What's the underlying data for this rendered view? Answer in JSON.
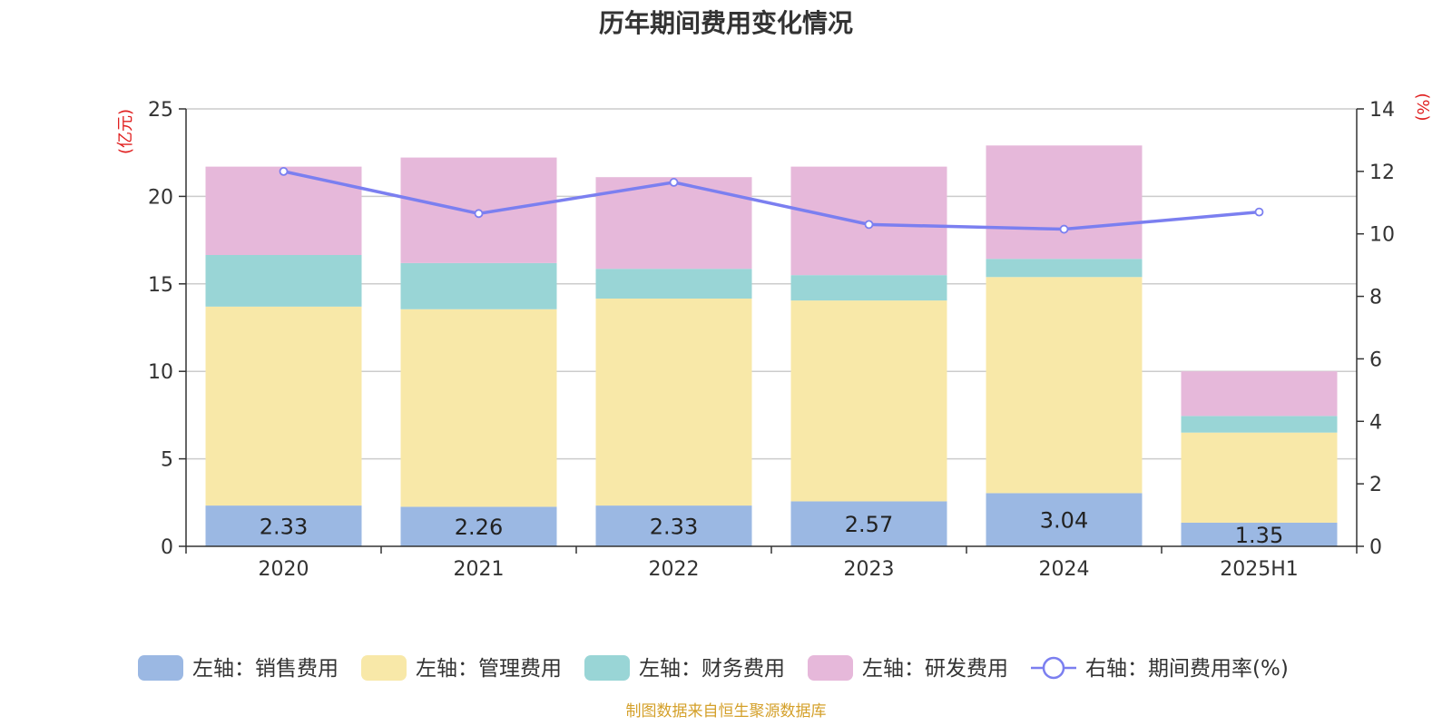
{
  "chart_data": {
    "type": "bar",
    "stacked": true,
    "title": "历年期间费用变化情况",
    "categories": [
      "2020",
      "2021",
      "2022",
      "2023",
      "2024",
      "2025H1"
    ],
    "series": [
      {
        "name": "左轴：销售费用",
        "axis": "left",
        "type": "bar",
        "color": "#9bb8e3",
        "values": [
          2.33,
          2.26,
          2.33,
          2.57,
          3.04,
          1.35
        ],
        "show_labels": true
      },
      {
        "name": "左轴：管理费用",
        "axis": "left",
        "type": "bar",
        "color": "#f8e8a8",
        "values": [
          11.37,
          11.29,
          11.83,
          11.48,
          12.35,
          5.15
        ],
        "show_labels": false
      },
      {
        "name": "左轴：财务费用",
        "axis": "left",
        "type": "bar",
        "color": "#99d5d6",
        "values": [
          2.95,
          2.64,
          1.7,
          1.45,
          1.04,
          0.95
        ],
        "show_labels": false
      },
      {
        "name": "左轴：研发费用",
        "axis": "left",
        "type": "bar",
        "color": "#e6b8da",
        "values": [
          5.05,
          6.03,
          5.24,
          6.2,
          6.48,
          2.55
        ],
        "show_labels": false
      },
      {
        "name": "右轴：期间费用率(%)",
        "axis": "right",
        "type": "line",
        "color": "#7b7ff0",
        "values": [
          12.0,
          10.65,
          11.65,
          10.3,
          10.15,
          10.7
        ],
        "show_labels": false
      }
    ],
    "y_left": {
      "label": "(亿元)",
      "range": [
        0,
        25
      ],
      "ticks": [
        0,
        5,
        10,
        15,
        20,
        25
      ]
    },
    "y_right": {
      "label": "(%)",
      "range": [
        0,
        14
      ],
      "ticks": [
        0,
        2,
        4,
        6,
        8,
        10,
        12,
        14
      ]
    },
    "grid": true,
    "legend_position": "bottom"
  },
  "source_note": "制图数据来自恒生聚源数据库",
  "colors": {
    "title": "#333333",
    "axis_label": "#e02020",
    "source_note": "#d4a02a",
    "grid": "#cccccc",
    "axis": "#333333",
    "tick_text": "#333333"
  }
}
